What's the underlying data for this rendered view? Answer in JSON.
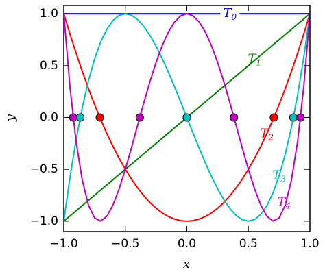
{
  "chart_data": {
    "type": "line",
    "xlabel": "x",
    "ylabel": "y",
    "x": [
      -1,
      -0.95,
      -0.9,
      -0.85,
      -0.8,
      -0.75,
      -0.7,
      -0.65,
      -0.6,
      -0.55,
      -0.5,
      -0.45,
      -0.4,
      -0.35,
      -0.3,
      -0.25,
      -0.2,
      -0.15,
      -0.1,
      -0.05,
      0,
      0.05,
      0.1,
      0.15,
      0.2,
      0.25,
      0.3,
      0.35,
      0.4,
      0.45,
      0.5,
      0.55,
      0.6,
      0.65,
      0.7,
      0.75,
      0.8,
      0.85,
      0.9,
      0.95,
      1
    ],
    "series": [
      {
        "name": "T0",
        "color": "#0000ff",
        "roots": [],
        "values": [
          1,
          1,
          1,
          1,
          1,
          1,
          1,
          1,
          1,
          1,
          1,
          1,
          1,
          1,
          1,
          1,
          1,
          1,
          1,
          1,
          1,
          1,
          1,
          1,
          1,
          1,
          1,
          1,
          1,
          1,
          1,
          1,
          1,
          1,
          1,
          1,
          1,
          1,
          1,
          1,
          1
        ]
      },
      {
        "name": "T1",
        "color": "#008000",
        "roots": [
          0
        ],
        "values": [
          -1,
          -0.95,
          -0.9,
          -0.85,
          -0.8,
          -0.75,
          -0.7,
          -0.65,
          -0.6,
          -0.55,
          -0.5,
          -0.45,
          -0.4,
          -0.35,
          -0.3,
          -0.25,
          -0.2,
          -0.15,
          -0.1,
          -0.05,
          0,
          0.05,
          0.1,
          0.15,
          0.2,
          0.25,
          0.3,
          0.35,
          0.4,
          0.45,
          0.5,
          0.55,
          0.6,
          0.65,
          0.7,
          0.75,
          0.8,
          0.85,
          0.9,
          0.95,
          1
        ]
      },
      {
        "name": "T2",
        "color": "#ff0000",
        "roots": [
          -0.7071,
          0.7071
        ],
        "values": [
          1,
          0.805,
          0.62,
          0.445,
          0.28,
          0.125,
          -0.02,
          -0.155,
          -0.28,
          -0.395,
          -0.5,
          -0.595,
          -0.68,
          -0.755,
          -0.82,
          -0.875,
          -0.92,
          -0.955,
          -0.98,
          -0.995,
          -1,
          -0.995,
          -0.98,
          -0.955,
          -0.92,
          -0.875,
          -0.82,
          -0.755,
          -0.68,
          -0.595,
          -0.5,
          -0.395,
          -0.28,
          -0.155,
          -0.02,
          0.125,
          0.28,
          0.445,
          0.62,
          0.805,
          1
        ]
      },
      {
        "name": "T3",
        "color": "#00bfbf",
        "roots": [
          -0.866,
          0,
          0.866
        ],
        "values": [
          -1,
          -0.5795,
          -0.216,
          0.0935,
          0.352,
          0.5625,
          0.728,
          0.8515,
          0.936,
          0.9845,
          1,
          0.9855,
          0.944,
          0.8785,
          0.792,
          0.6875,
          0.568,
          0.4365,
          0.296,
          0.1495,
          0,
          -0.1495,
          -0.296,
          -0.4365,
          -0.568,
          -0.6875,
          -0.792,
          -0.8785,
          -0.944,
          -0.9855,
          -1,
          -0.9845,
          -0.936,
          -0.8515,
          -0.728,
          -0.5625,
          -0.352,
          -0.0935,
          0.216,
          0.5795,
          1
        ]
      },
      {
        "name": "T4",
        "color": "#bf00bf",
        "roots": [
          -0.9239,
          -0.3827,
          0.3827,
          0.9239
        ],
        "values": [
          1,
          0.29605,
          -0.2312,
          -0.60395,
          -0.8432,
          -0.96875,
          -0.9992,
          -0.95195,
          -0.8432,
          -0.68795,
          -0.5,
          -0.29195,
          -0.0752,
          0.14005,
          0.3448,
          0.53125,
          0.6928,
          0.82405,
          0.9208,
          0.98005,
          1,
          0.98005,
          0.9208,
          0.82405,
          0.6928,
          0.53125,
          0.3448,
          0.14005,
          -0.0752,
          -0.29195,
          -0.5,
          -0.68795,
          -0.8432,
          -0.95195,
          -0.9992,
          -0.96875,
          -0.8432,
          -0.60395,
          -0.2312,
          0.29605,
          1
        ]
      }
    ],
    "xlim": [
      -1,
      1
    ],
    "xticks": [
      {
        "value": -1,
        "label": "−1.0"
      },
      {
        "value": -0.5,
        "label": "−0.5"
      },
      {
        "value": 0,
        "label": "0.0"
      },
      {
        "value": 0.5,
        "label": "0.5"
      },
      {
        "value": 1,
        "label": "1.0"
      }
    ],
    "ylim": [
      -1.1,
      1.08
    ],
    "yticks": [
      {
        "value": -1,
        "label": "−1.0"
      },
      {
        "value": -0.5,
        "label": "−0.5"
      },
      {
        "value": 0,
        "label": "0.0"
      },
      {
        "value": 0.5,
        "label": "0.5"
      },
      {
        "value": 1,
        "label": "1.0"
      }
    ]
  }
}
